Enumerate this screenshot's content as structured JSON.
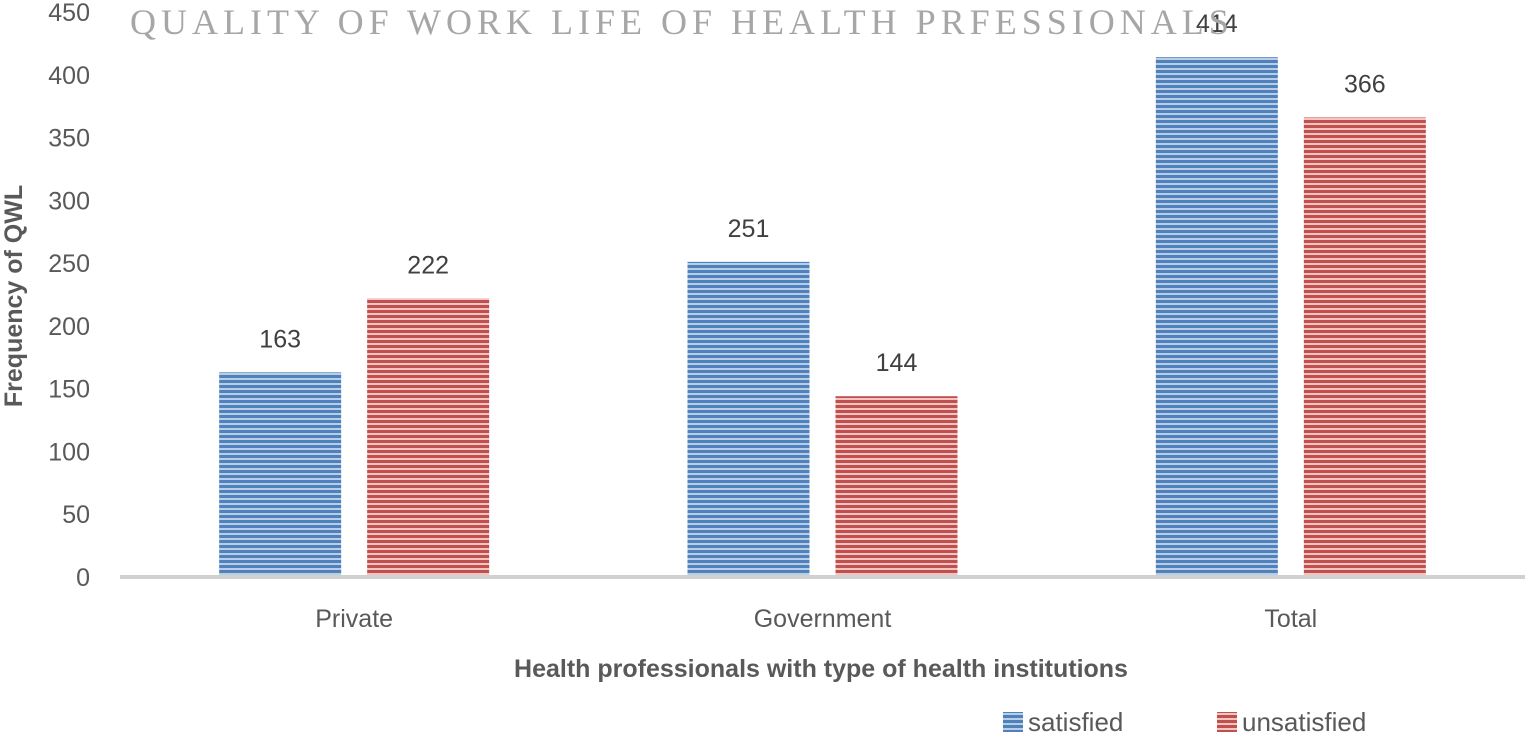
{
  "chart_data": {
    "type": "bar",
    "title": "QUALITY OF WORK LIFE OF HEALTH PRFESSIONALS",
    "xlabel": "Health professionals with type of health institutions",
    "ylabel": "Frequency of QWL",
    "categories": [
      "Private",
      "Government",
      "Total"
    ],
    "series": [
      {
        "name": "satisfied",
        "values": [
          163,
          251,
          414
        ],
        "color": "#4f81bd"
      },
      {
        "name": "unsatisfied",
        "values": [
          222,
          144,
          366
        ],
        "color": "#c0504d"
      }
    ],
    "ylim": [
      0,
      450
    ],
    "yticks": [
      0,
      50,
      100,
      150,
      200,
      250,
      300,
      350,
      400,
      450
    ],
    "grid": false,
    "data_labels": true,
    "fill_pattern": "horizontal-stripes",
    "legend_position": "bottom-right"
  }
}
